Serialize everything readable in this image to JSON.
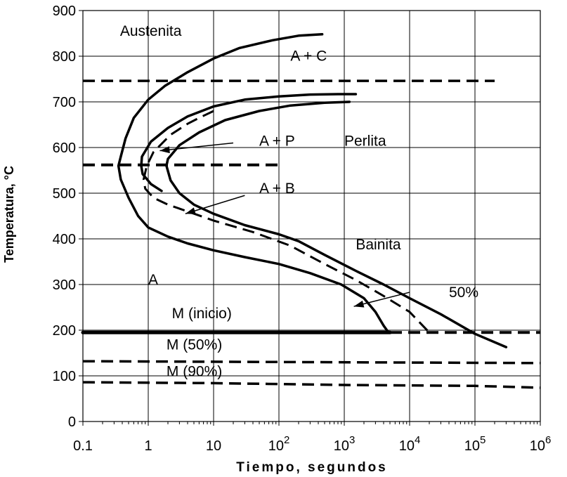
{
  "chart_data": {
    "type": "line",
    "title": "",
    "xlabel": "Tiempo, segundos",
    "ylabel": "Temperatura, °C",
    "xscale": "log",
    "xlim": [
      0.1,
      1000000
    ],
    "ylim": [
      0,
      900
    ],
    "grid": true,
    "x_ticks": [
      {
        "value": 0.1,
        "base": "0.1",
        "exp": ""
      },
      {
        "value": 1,
        "base": "1",
        "exp": ""
      },
      {
        "value": 10,
        "base": "10",
        "exp": ""
      },
      {
        "value": 100,
        "base": "10",
        "exp": "2"
      },
      {
        "value": 1000,
        "base": "10",
        "exp": "3"
      },
      {
        "value": 10000,
        "base": "10",
        "exp": "4"
      },
      {
        "value": 100000,
        "base": "10",
        "exp": "5"
      },
      {
        "value": 1000000,
        "base": "10",
        "exp": "6"
      }
    ],
    "y_ticks": [
      "0",
      "100",
      "200",
      "300",
      "400",
      "500",
      "600",
      "700",
      "800",
      "900"
    ],
    "series": [
      {
        "style": "solid",
        "width": 3.5,
        "points": [
          [
            460,
            848
          ],
          [
            200,
            845
          ],
          [
            80,
            835
          ],
          [
            25,
            818
          ],
          [
            10,
            795
          ],
          [
            4,
            765
          ],
          [
            1.8,
            735
          ],
          [
            1,
            705
          ],
          [
            0.6,
            665
          ],
          [
            0.45,
            620
          ],
          [
            0.38,
            580
          ],
          [
            0.35,
            560
          ],
          [
            0.38,
            530
          ],
          [
            0.5,
            490
          ],
          [
            0.7,
            450
          ],
          [
            1,
            425
          ],
          [
            2,
            405
          ],
          [
            4,
            390
          ],
          [
            10,
            375
          ],
          [
            30,
            360
          ],
          [
            100,
            345
          ],
          [
            300,
            325
          ],
          [
            900,
            300
          ],
          [
            2000,
            270
          ],
          [
            3000,
            240
          ],
          [
            4000,
            210
          ],
          [
            4700,
            196
          ]
        ]
      },
      {
        "style": "solid",
        "width": 3.5,
        "points": [
          [
            1500,
            717
          ],
          [
            800,
            717
          ],
          [
            300,
            716
          ],
          [
            100,
            712
          ],
          [
            30,
            705
          ],
          [
            10,
            690
          ],
          [
            4,
            668
          ],
          [
            2,
            643
          ],
          [
            1.1,
            613
          ],
          [
            0.8,
            580
          ],
          [
            0.78,
            560
          ],
          [
            0.82,
            542
          ],
          [
            1.1,
            520
          ],
          [
            1.6,
            505
          ]
        ]
      },
      {
        "style": "solid",
        "width": 3.5,
        "points": [
          [
            1200,
            700
          ],
          [
            500,
            698
          ],
          [
            150,
            692
          ],
          [
            50,
            680
          ],
          [
            15,
            660
          ],
          [
            6,
            633
          ],
          [
            3,
            605
          ],
          [
            2,
            575
          ],
          [
            1.9,
            560
          ],
          [
            2.2,
            528
          ],
          [
            3,
            500
          ],
          [
            5,
            475
          ],
          [
            10,
            455
          ],
          [
            30,
            430
          ],
          [
            100,
            410
          ],
          [
            200,
            395
          ],
          [
            500,
            365
          ],
          [
            1500,
            330
          ],
          [
            4000,
            300
          ],
          [
            10000,
            270
          ],
          [
            30000,
            235
          ],
          [
            100000,
            192
          ],
          [
            300000,
            163
          ]
        ]
      },
      {
        "style": "dashed",
        "width": 3,
        "points": [
          [
            10,
            680
          ],
          [
            6,
            665
          ],
          [
            4,
            652
          ],
          [
            2.2,
            628
          ],
          [
            1.2,
            590
          ],
          [
            0.95,
            560
          ],
          [
            0.85,
            530
          ],
          [
            0.9,
            510
          ],
          [
            1.2,
            490
          ],
          [
            2,
            475
          ],
          [
            4,
            460
          ],
          [
            10,
            440
          ],
          [
            40,
            415
          ],
          [
            150,
            385
          ],
          [
            500,
            345
          ],
          [
            1500,
            310
          ],
          [
            4000,
            275
          ],
          [
            10000,
            240
          ],
          [
            20000,
            195
          ]
        ]
      },
      {
        "style": "dashed",
        "width": 3.5,
        "points": [
          [
            0.1,
            746
          ],
          [
            200000,
            746
          ]
        ]
      },
      {
        "style": "dashed",
        "width": 4,
        "points": [
          [
            0.1,
            562
          ],
          [
            100,
            562
          ]
        ]
      },
      {
        "style": "solid",
        "width": 5,
        "points": [
          [
            0.1,
            195
          ],
          [
            5000,
            195
          ]
        ]
      },
      {
        "style": "dashed",
        "width": 4,
        "points": [
          [
            5000,
            195
          ],
          [
            1000000,
            195
          ]
        ]
      },
      {
        "style": "dashed",
        "width": 3.5,
        "points": [
          [
            0.1,
            132
          ],
          [
            1000000,
            128
          ]
        ]
      },
      {
        "style": "dashed",
        "width": 3.5,
        "points": [
          [
            0.1,
            86
          ],
          [
            10,
            84
          ],
          [
            1000,
            80
          ],
          [
            100000,
            78
          ],
          [
            1000000,
            74
          ]
        ]
      }
    ],
    "arrows": [
      {
        "from": [
          20,
          610
        ],
        "to": [
          1.5,
          593
        ]
      },
      {
        "from": [
          30,
          495
        ],
        "to": [
          3.7,
          455
        ]
      },
      {
        "from": [
          10000,
          283
        ],
        "to": [
          1400,
          252
        ]
      }
    ],
    "labels": [
      {
        "text": "Austenita",
        "x": 0.37,
        "y": 845
      },
      {
        "text": "A + C",
        "x": 150,
        "y": 790
      },
      {
        "text": "A + P",
        "x": 50,
        "y": 604
      },
      {
        "text": "Perlita",
        "x": 1000,
        "y": 604
      },
      {
        "text": "A + B",
        "x": 50,
        "y": 500
      },
      {
        "text": "Bainita",
        "x": 1500,
        "y": 377
      },
      {
        "text": "A",
        "x": 1,
        "y": 300
      },
      {
        "text": "50%",
        "x": 40000,
        "y": 272
      },
      {
        "text": "M (inicio)",
        "x": 2.3,
        "y": 226
      },
      {
        "text": "M (50%)",
        "x": 1.9,
        "y": 158
      },
      {
        "text": "M (90%)",
        "x": 1.9,
        "y": 99
      }
    ]
  }
}
